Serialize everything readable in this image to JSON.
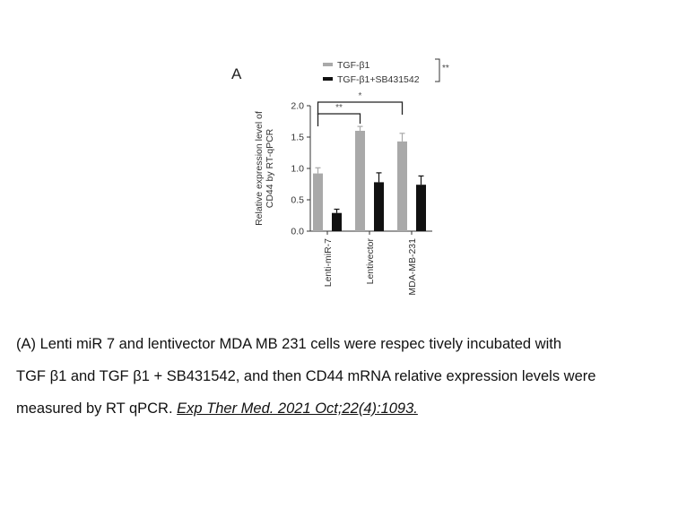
{
  "panel_label": "A",
  "chart_data": {
    "type": "bar",
    "title": "",
    "ylabel": "Relative expression level of CD44 by RT-qPCR",
    "xlabel": "",
    "ylim": [
      0,
      2.0
    ],
    "yticks": [
      "0.0",
      "0.5",
      "1.0",
      "1.5",
      "2.0"
    ],
    "categories": [
      "Lenti-miR-7",
      "Lentivector",
      "MDA-MB-231"
    ],
    "series": [
      {
        "name": "TGF-β1",
        "color": "#a9a9a9",
        "values": [
          0.92,
          1.6,
          1.43
        ],
        "errors": [
          0.09,
          0.07,
          0.13
        ]
      },
      {
        "name": "TGF-β1+SB431542",
        "color": "#111111",
        "values": [
          0.29,
          0.78,
          0.74
        ],
        "errors": [
          0.06,
          0.15,
          0.14
        ]
      }
    ],
    "legend_position": "top",
    "grid": false,
    "annotations": [
      {
        "text": "**",
        "kind": "legend-bracket"
      },
      {
        "text": "**",
        "kind": "bracket",
        "from": "Lenti-miR-7",
        "to": "Lentivector"
      },
      {
        "text": "*",
        "kind": "bracket",
        "from": "Lenti-miR-7",
        "to": "MDA-MB-231"
      }
    ]
  },
  "caption": {
    "line1": "(A) Lenti miR 7 and lentivector MDA MB 231 cells were respec tively incubated with",
    "line2": "TGF β1 and TGF β1 + SB431542, and then CD44 mRNA relative expression levels were",
    "line3_text": "measured by RT qPCR. ",
    "citation": "Exp Ther Med. 2021 Oct;22(4):1093."
  }
}
